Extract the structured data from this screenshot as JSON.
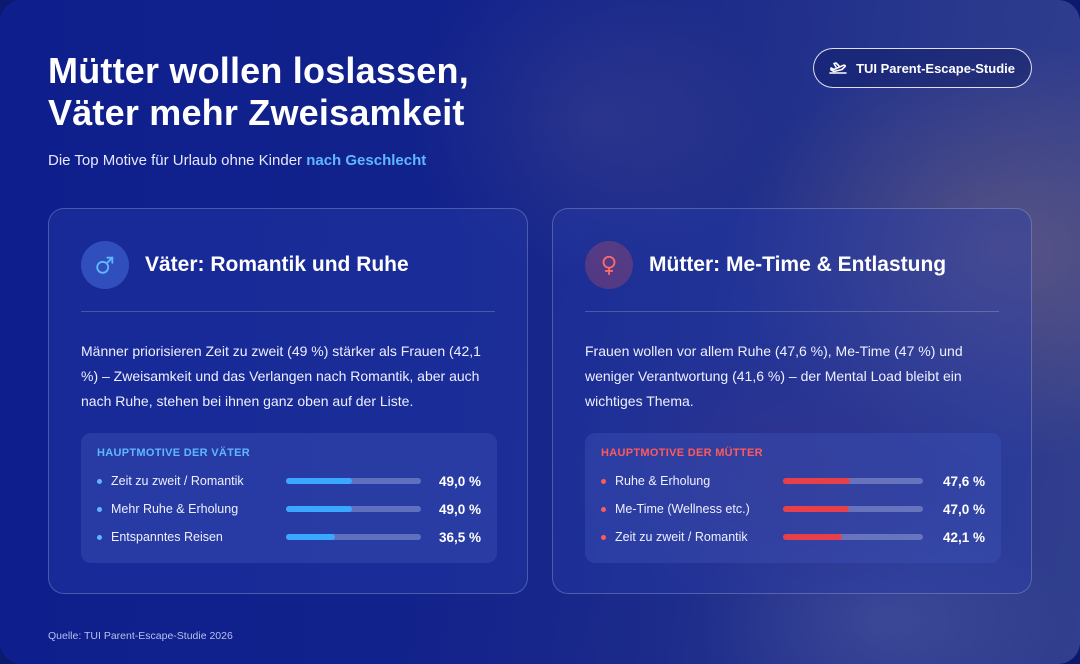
{
  "header": {
    "title_line1": "Mütter wollen loslassen,",
    "title_line2": "Väter mehr Zweisamkeit",
    "subtitle_prefix": "Die Top Motive für Urlaub ohne Kinder",
    "subtitle_highlight": "nach Geschlecht",
    "badge_label": "TUI Parent-Escape-Studie",
    "badge_icon": "plane-icon"
  },
  "colors": {
    "accent_blue": "#3aa8ff",
    "accent_red": "#e8404a",
    "background": "#12248c"
  },
  "fathers": {
    "icon": "male-symbol-icon",
    "title": "Väter: Romantik und Ruhe",
    "text": "Männer priorisieren Zeit zu zweit (49 %) stärker als Frauen (42,1 %) – Zweisamkeit und das Verlangen nach Romantik, aber auch nach Ruhe, stehen bei ihnen ganz oben auf der Liste.",
    "motives_heading": "Hauptmotive der Väter",
    "motives": [
      {
        "label": "Zeit zu zweit / Romantik",
        "value": 49.0,
        "display": "49,0 %"
      },
      {
        "label": "Mehr Ruhe & Erholung",
        "value": 49.0,
        "display": "49,0 %"
      },
      {
        "label": "Entspanntes Reisen",
        "value": 36.5,
        "display": "36,5 %"
      }
    ]
  },
  "mothers": {
    "icon": "female-symbol-icon",
    "title": "Mütter: Me-Time & Entlastung",
    "text": "Frauen wollen vor allem Ruhe (47,6 %), Me-Time (47 %) und weniger Verantwortung (41,6 %) – der Mental Load bleibt ein wichtiges Thema.",
    "motives_heading": "Hauptmotive der Mütter",
    "motives": [
      {
        "label": "Ruhe & Erholung",
        "value": 47.6,
        "display": "47,6 %"
      },
      {
        "label": "Me-Time (Wellness etc.)",
        "value": 47.0,
        "display": "47,0 %"
      },
      {
        "label": "Zeit zu zweit / Romantik",
        "value": 42.1,
        "display": "42,1 %"
      }
    ]
  },
  "footer": {
    "source": "Quelle: TUI Parent-Escape-Studie 2026"
  }
}
